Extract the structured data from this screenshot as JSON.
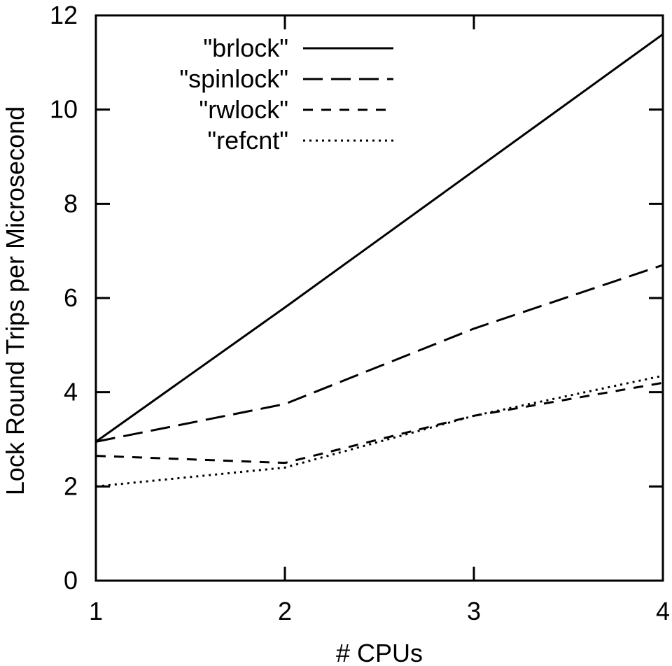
{
  "chart_data": {
    "type": "line",
    "title": "",
    "xlabel": "# CPUs",
    "ylabel": "Lock Round Trips per Microsecond",
    "x": [
      1,
      2,
      3,
      4
    ],
    "xlim": [
      1,
      4
    ],
    "ylim": [
      0,
      12
    ],
    "xticks": [
      "1",
      "2",
      "3",
      "4"
    ],
    "yticks": [
      "0",
      "2",
      "4",
      "6",
      "8",
      "10",
      "12"
    ],
    "grid": false,
    "legend_position": "top-left",
    "series": [
      {
        "name": "\"brlock\"",
        "style": "solid",
        "values": [
          2.95,
          5.8,
          8.7,
          11.6
        ]
      },
      {
        "name": "\"spinlock\"",
        "style": "long-dash",
        "values": [
          2.95,
          3.75,
          5.35,
          6.7
        ]
      },
      {
        "name": "\"rwlock\"",
        "style": "short-dash",
        "values": [
          2.65,
          2.5,
          3.5,
          4.2
        ]
      },
      {
        "name": "\"refcnt\"",
        "style": "dotted",
        "values": [
          2.0,
          2.4,
          3.5,
          4.35
        ]
      }
    ],
    "line_color": "#000000"
  }
}
